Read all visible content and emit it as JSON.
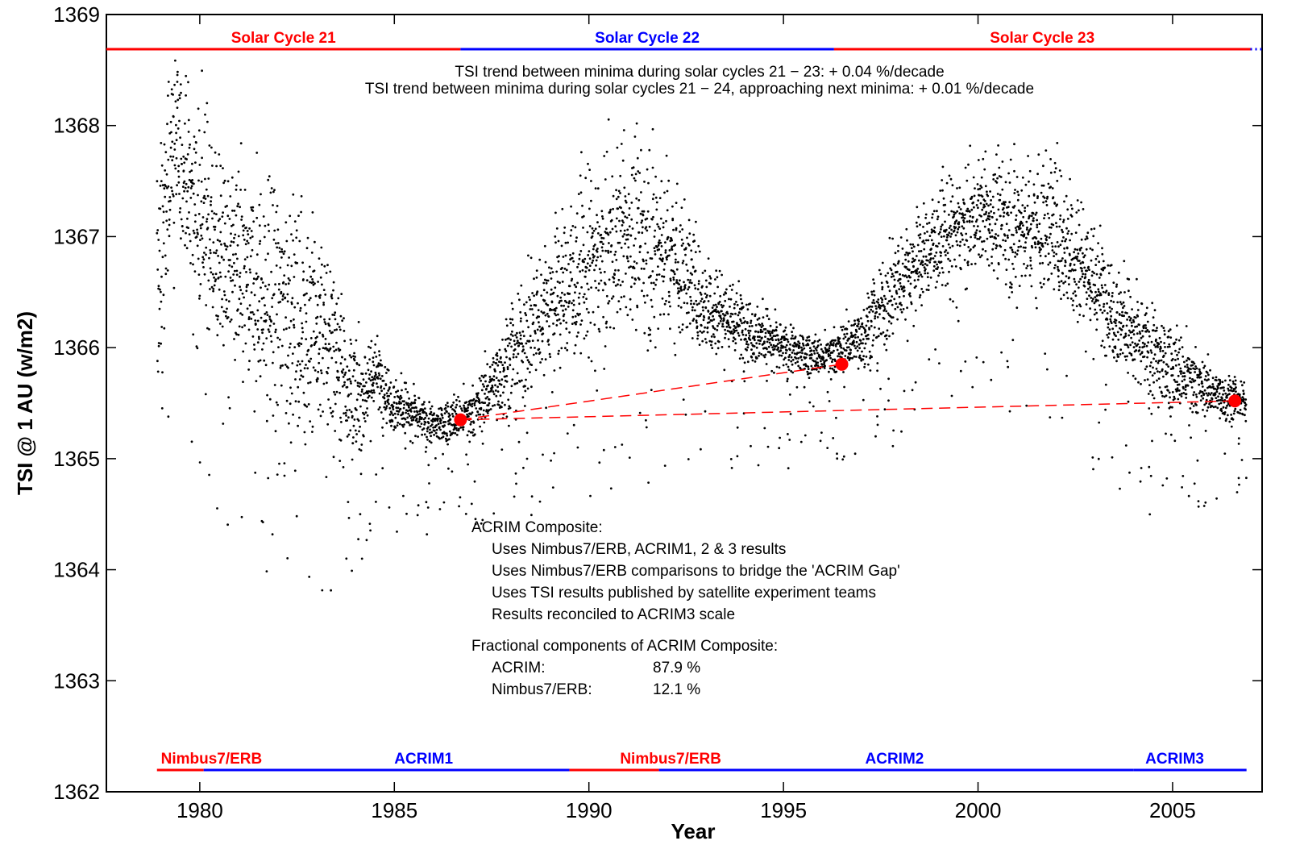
{
  "chart_data": {
    "type": "scatter",
    "title_visible": "",
    "xlabel": "Year",
    "ylabel": "TSI @ 1 AU (w/m2)",
    "xlim": [
      1977.6,
      2007.3
    ],
    "ylim": [
      1362,
      1369
    ],
    "x_ticks": [
      1980,
      1985,
      1990,
      1995,
      2000,
      2005
    ],
    "y_ticks": [
      1362,
      1363,
      1364,
      1365,
      1366,
      1367,
      1368,
      1369
    ],
    "grid": false,
    "solar_cycles": [
      {
        "label": "Solar Cycle 21",
        "start": 1977.6,
        "end": 1986.7,
        "color": "#ff0000"
      },
      {
        "label": "Solar Cycle 22",
        "start": 1986.7,
        "end": 1996.3,
        "color": "#0000ff"
      },
      {
        "label": "Solar Cycle 23",
        "start": 1996.3,
        "end": 2007.0,
        "color": "#ff0000"
      },
      {
        "label": "",
        "start": 2007.0,
        "end": 2007.3,
        "color": "#0000ff",
        "dotted": true
      }
    ],
    "trend_lines": [
      "TSI trend between minima during solar cycles 21 − 23: + 0.04 %/decade",
      "TSI trend between minima during solar cycles 21 − 24, approaching next minima: + 0.01 %/decade"
    ],
    "minima_points": [
      {
        "x": 1986.7,
        "y": 1365.35
      },
      {
        "x": 1996.5,
        "y": 1365.85
      },
      {
        "x": 2006.6,
        "y": 1365.52
      }
    ],
    "trend_segments": [
      {
        "from": 0,
        "to": 1
      },
      {
        "from": 0,
        "to": 2
      }
    ],
    "composite_notes": {
      "heading": "ACRIM Composite:",
      "items": [
        "Uses Nimbus7/ERB, ACRIM1, 2 & 3  results",
        "Uses Nimbus7/ERB comparisons to bridge the 'ACRIM Gap'",
        "Uses TSI results published by satellite experiment teams",
        "Results reconciled to ACRIM3 scale"
      ],
      "fraction_heading": "Fractional components of ACRIM Composite:",
      "fractions": [
        {
          "name": "ACRIM:",
          "value": "87.9 %"
        },
        {
          "name": "Nimbus7/ERB:",
          "value": "12.1 %"
        }
      ]
    },
    "instruments": [
      {
        "label": "Nimbus7/ERB",
        "start": 1978.9,
        "end": 1980.1,
        "color": "#ff0000",
        "label_x": 1979.0
      },
      {
        "label": "ACRIM1",
        "start": 1980.1,
        "end": 1989.5,
        "color": "#0000ff",
        "label_x": 1985.0
      },
      {
        "label": "Nimbus7/ERB",
        "start": 1989.5,
        "end": 1991.8,
        "color": "#ff0000",
        "label_x": 1990.8
      },
      {
        "label": "ACRIM2",
        "start": 1991.8,
        "end": 2004.0,
        "color": "#0000ff",
        "label_x": 1997.1
      },
      {
        "label": "ACRIM3",
        "start": 2004.0,
        "end": 2006.9,
        "color": "#0000ff",
        "label_x": 2004.3
      }
    ],
    "series": [
      {
        "name": "",
        "marker": "dot",
        "color": "#000000",
        "note": "Daily TSI values approximated by their running envelope",
        "envelope": [
          {
            "x": 1978.9,
            "center": 1366.5,
            "spread": 0.9
          },
          {
            "x": 1979.3,
            "center": 1367.9,
            "spread": 0.7
          },
          {
            "x": 1979.8,
            "center": 1367.4,
            "spread": 0.8
          },
          {
            "x": 1980.5,
            "center": 1366.9,
            "spread": 0.8
          },
          {
            "x": 1981.5,
            "center": 1366.5,
            "spread": 0.9
          },
          {
            "x": 1982.5,
            "center": 1366.3,
            "spread": 0.9
          },
          {
            "x": 1983.5,
            "center": 1366.0,
            "spread": 0.7
          },
          {
            "x": 1984.0,
            "center": 1365.5,
            "spread": 0.5
          },
          {
            "x": 1984.5,
            "center": 1365.8,
            "spread": 0.3
          },
          {
            "x": 1985.0,
            "center": 1365.5,
            "spread": 0.25
          },
          {
            "x": 1986.0,
            "center": 1365.3,
            "spread": 0.15
          },
          {
            "x": 1987.0,
            "center": 1365.4,
            "spread": 0.2
          },
          {
            "x": 1988.0,
            "center": 1365.9,
            "spread": 0.4
          },
          {
            "x": 1989.0,
            "center": 1366.4,
            "spread": 0.6
          },
          {
            "x": 1990.0,
            "center": 1366.8,
            "spread": 0.7
          },
          {
            "x": 1991.0,
            "center": 1367.0,
            "spread": 0.7
          },
          {
            "x": 1992.0,
            "center": 1366.9,
            "spread": 0.7
          },
          {
            "x": 1993.0,
            "center": 1366.4,
            "spread": 0.4
          },
          {
            "x": 1994.0,
            "center": 1366.2,
            "spread": 0.3
          },
          {
            "x": 1995.0,
            "center": 1366.0,
            "spread": 0.2
          },
          {
            "x": 1996.0,
            "center": 1365.9,
            "spread": 0.15
          },
          {
            "x": 1997.0,
            "center": 1366.1,
            "spread": 0.25
          },
          {
            "x": 1998.0,
            "center": 1366.6,
            "spread": 0.4
          },
          {
            "x": 1999.0,
            "center": 1367.0,
            "spread": 0.4
          },
          {
            "x": 2000.0,
            "center": 1367.2,
            "spread": 0.4
          },
          {
            "x": 2001.0,
            "center": 1367.1,
            "spread": 0.5
          },
          {
            "x": 2002.0,
            "center": 1367.1,
            "spread": 0.6
          },
          {
            "x": 2003.0,
            "center": 1366.6,
            "spread": 0.5
          },
          {
            "x": 2004.0,
            "center": 1366.1,
            "spread": 0.4
          },
          {
            "x": 2005.0,
            "center": 1365.8,
            "spread": 0.35
          },
          {
            "x": 2006.0,
            "center": 1365.6,
            "spread": 0.2
          },
          {
            "x": 2006.9,
            "center": 1365.5,
            "spread": 0.15
          }
        ]
      }
    ]
  }
}
